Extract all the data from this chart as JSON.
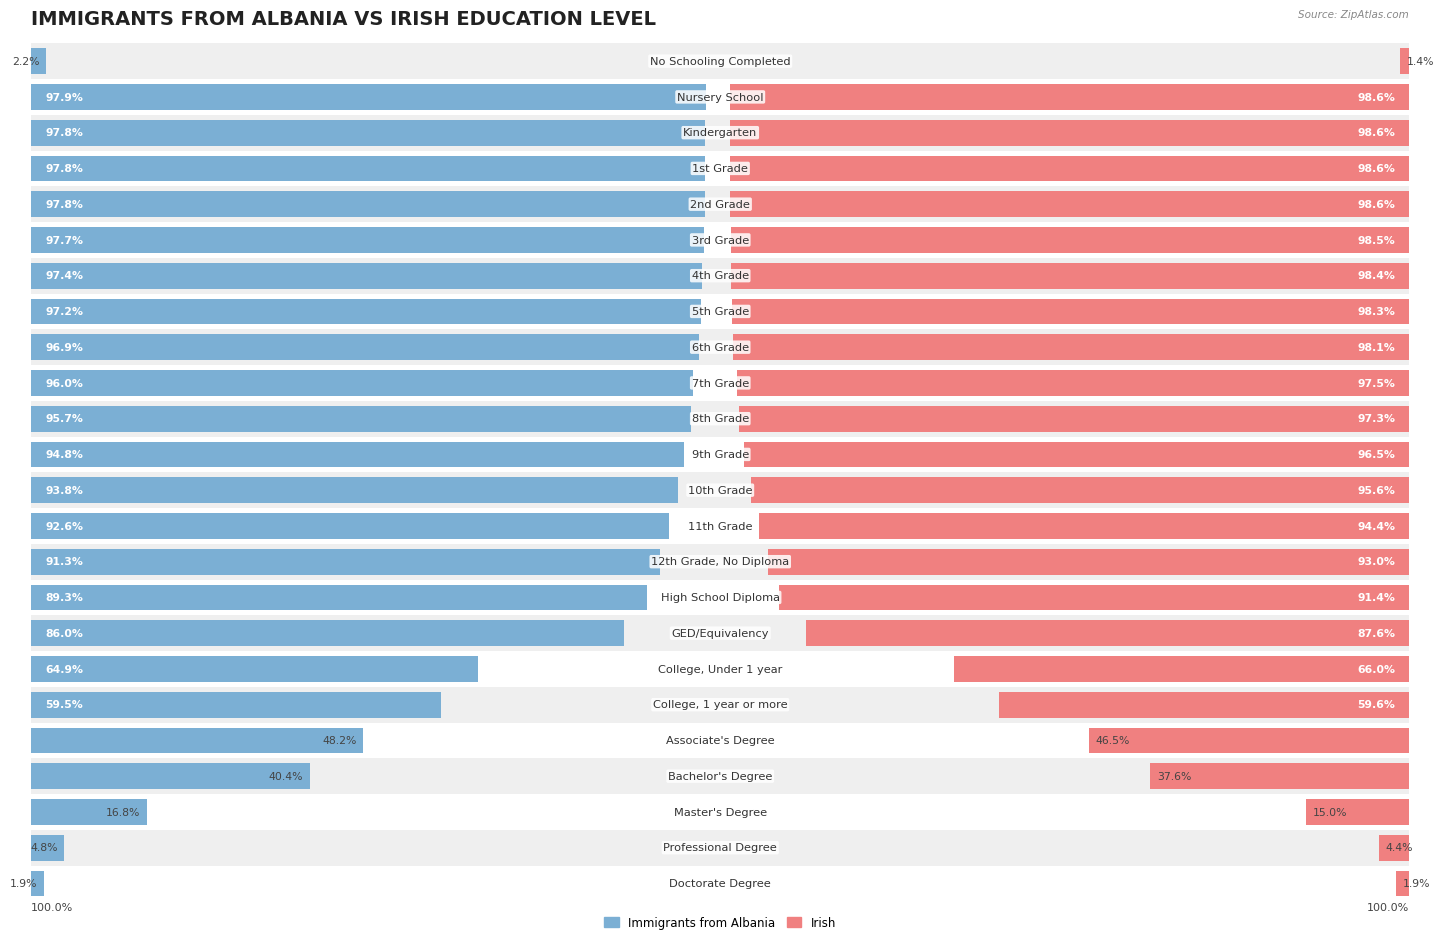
{
  "title": "IMMIGRANTS FROM ALBANIA VS IRISH EDUCATION LEVEL",
  "source": "Source: ZipAtlas.com",
  "categories": [
    "No Schooling Completed",
    "Nursery School",
    "Kindergarten",
    "1st Grade",
    "2nd Grade",
    "3rd Grade",
    "4th Grade",
    "5th Grade",
    "6th Grade",
    "7th Grade",
    "8th Grade",
    "9th Grade",
    "10th Grade",
    "11th Grade",
    "12th Grade, No Diploma",
    "High School Diploma",
    "GED/Equivalency",
    "College, Under 1 year",
    "College, 1 year or more",
    "Associate's Degree",
    "Bachelor's Degree",
    "Master's Degree",
    "Professional Degree",
    "Doctorate Degree"
  ],
  "albania": [
    2.2,
    97.9,
    97.8,
    97.8,
    97.8,
    97.7,
    97.4,
    97.2,
    96.9,
    96.0,
    95.7,
    94.8,
    93.8,
    92.6,
    91.3,
    89.3,
    86.0,
    64.9,
    59.5,
    48.2,
    40.4,
    16.8,
    4.8,
    1.9
  ],
  "irish": [
    1.4,
    98.6,
    98.6,
    98.6,
    98.6,
    98.5,
    98.4,
    98.3,
    98.1,
    97.5,
    97.3,
    96.5,
    95.6,
    94.4,
    93.0,
    91.4,
    87.6,
    66.0,
    59.6,
    46.5,
    37.6,
    15.0,
    4.4,
    1.9
  ],
  "albania_color": "#7bafd4",
  "irish_color": "#f08080",
  "bg_row_even": "#efefef",
  "bg_row_odd": "#ffffff",
  "title_fontsize": 14,
  "label_fontsize": 8.2,
  "value_fontsize": 7.8,
  "legend_albania": "Immigrants from Albania",
  "legend_irish": "Irish",
  "total": 100.0
}
